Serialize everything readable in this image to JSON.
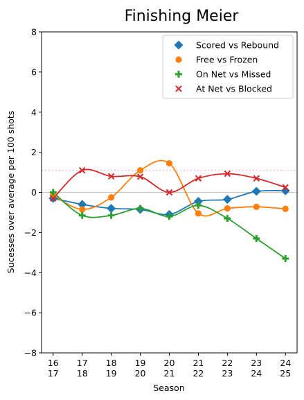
{
  "chart_data": {
    "type": "line",
    "title": "Finishing Meier",
    "xlabel": "Season",
    "ylabel": "Sucesses over average per 100 shots",
    "ylim": [
      -8,
      8
    ],
    "yticks": [
      "−8",
      "−6",
      "−4",
      "−2",
      "0",
      "2",
      "4",
      "6",
      "8"
    ],
    "ytick_values": [
      -8,
      -6,
      -4,
      -2,
      0,
      2,
      4,
      6,
      8
    ],
    "categories": [
      [
        "16",
        "17"
      ],
      [
        "17",
        "18"
      ],
      [
        "18",
        "19"
      ],
      [
        "19",
        "20"
      ],
      [
        "20",
        "21"
      ],
      [
        "21",
        "22"
      ],
      [
        "22",
        "23"
      ],
      [
        "23",
        "24"
      ],
      [
        "24",
        "25"
      ]
    ],
    "reference_lines": [
      {
        "y": 0,
        "color": "#c8c8c8",
        "style": "solid"
      },
      {
        "y": 1.1,
        "color": "#ffb6c1",
        "style": "dotted"
      }
    ],
    "legend_position": "top-right",
    "series": [
      {
        "name": "Scored vs Rebound",
        "color": "#1f77b4",
        "marker": "diamond",
        "values": [
          -0.3,
          -0.6,
          -0.8,
          -0.85,
          -1.1,
          -0.45,
          -0.35,
          0.05,
          0.08
        ]
      },
      {
        "name": "Free vs Frozen",
        "color": "#ff7f0e",
        "marker": "circle",
        "values": [
          -0.15,
          -0.85,
          -0.25,
          1.1,
          1.45,
          -1.05,
          -0.8,
          -0.72,
          -0.82
        ]
      },
      {
        "name": "On Net vs Missed",
        "color": "#2ca02c",
        "marker": "plus",
        "values": [
          0.0,
          -1.15,
          -1.15,
          -0.8,
          -1.2,
          -0.65,
          -1.3,
          -2.3,
          -3.3
        ]
      },
      {
        "name": "At Net vs Blocked",
        "color": "#d62728",
        "marker": "x",
        "values": [
          -0.3,
          1.1,
          0.8,
          0.78,
          0.0,
          0.7,
          0.93,
          0.7,
          0.25
        ]
      }
    ]
  }
}
